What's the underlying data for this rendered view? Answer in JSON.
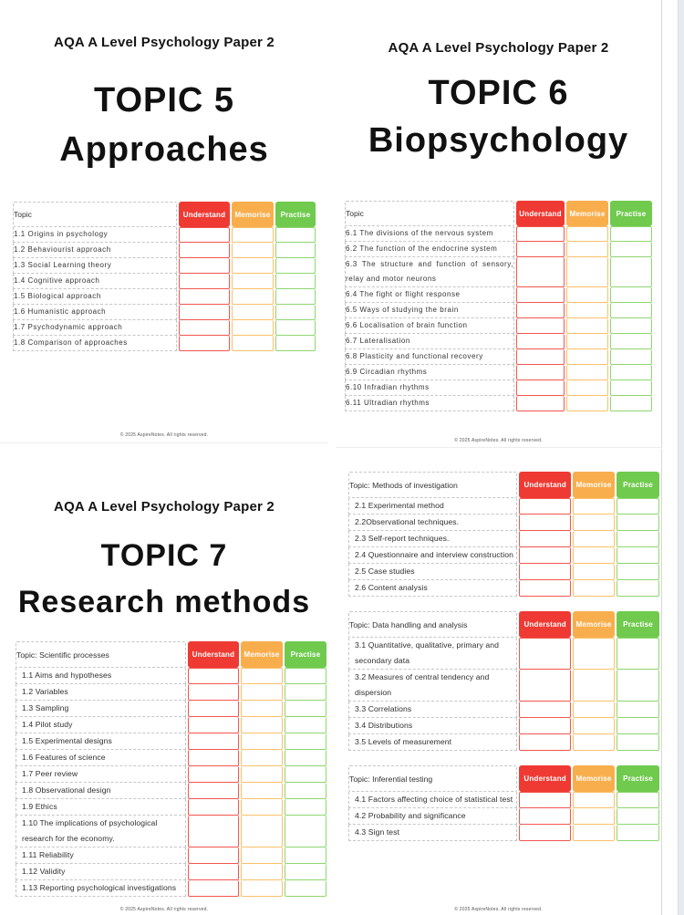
{
  "document_title": "AQA A Level Psychology Paper 2",
  "footer_text": "© 2025 AspireNotes. All rights reserved.",
  "columns": [
    "Understand",
    "Memorise",
    "Practise"
  ],
  "colors": {
    "understand_header": "#ee3a33",
    "understand_border": "#f2564e",
    "memorise_header": "#f9ae4d",
    "memorise_border": "#fbc068",
    "practise_header": "#70ca4e",
    "practise_border": "#8ed66f"
  },
  "pages": [
    {
      "name": "topic-5-approaches",
      "header": "AQA A Level Psychology Paper 2",
      "title1": "TOPIC 5",
      "title2": "Approaches",
      "footer": "© 2025 AspireNotes. All rights reserved.",
      "tables": [
        {
          "topic_label": "Topic",
          "rows": [
            "1.1 Origins in psychology",
            "1.2 Behaviourist approach",
            "1.3 Social Learning theory",
            "1.4 Cognitive approach",
            "1.5 Biological approach",
            "1.6 Humanistic approach",
            "1.7 Psychodynamic approach",
            "1.8 Comparison of approaches"
          ]
        }
      ]
    },
    {
      "name": "topic-6-biopsychology",
      "header": "AQA A Level Psychology Paper 2",
      "title1": "TOPIC 6",
      "title2": "Biopsychology",
      "footer": "© 2025 AspireNotes. All rights reserved.",
      "tables": [
        {
          "topic_label": "Topic",
          "rows": [
            "6.1 The divisions of the nervous system",
            "6.2 The function of the endocrine system",
            "6.3 The structure and function of sensory, relay and motor neurons",
            "6.4 The fight or flight response",
            "6.5 Ways of studying the brain",
            "6.6 Localisation of brain function",
            "6.7 Lateralisation",
            "6.8 Plasticity and functional recovery",
            "6.9 Circadian rhythms",
            "6.10 Infradian rhythms",
            "6.11 Ultradian rhythms"
          ]
        }
      ]
    },
    {
      "name": "topic-7-research-methods",
      "header": "AQA A Level Psychology Paper 2",
      "title1": "TOPIC 7",
      "title2": "Research methods",
      "footer": "© 2025 AspireNotes. All rights reserved.",
      "tables": [
        {
          "topic_label": "Topic: Scientific processes",
          "rows": [
            "1.1 Aims and hypotheses",
            "1.2 Variables",
            "1.3 Sampling",
            "1.4 Pilot study",
            "1.5 Experimental designs",
            "1.6 Features of science",
            "1.7 Peer review",
            "1.8 Observational design",
            "1.9 Ethics",
            "1.10 The implications of psychological research for the economy.",
            "1.11 Reliability",
            "1.12 Validity",
            "1.13 Reporting psychological investigations"
          ]
        }
      ]
    },
    {
      "name": "topic-7-continued",
      "footer": "© 2025 AspireNotes. All rights reserved.",
      "tables": [
        {
          "topic_label": "Topic: Methods of investigation",
          "rows": [
            "2.1 Experimental method",
            "2.2Observational techniques.",
            "2.3 Self-report techniques.",
            "2.4 Questionnaire and interview construction",
            "2.5 Case studies",
            "2.6 Content analysis"
          ]
        },
        {
          "topic_label": "Topic: Data handling and analysis",
          "rows": [
            "3.1 Quantitative, qualitative, primary and secondary data",
            "3.2 Measures of central tendency and dispersion",
            "3.3 Correlations",
            "3.4 Distributions",
            "3.5 Levels of measurement"
          ]
        },
        {
          "topic_label": "Topic: Inferential testing",
          "rows": [
            "4.1 Factors affecting choice of statistical test",
            "4.2 Probability and significance",
            "4.3 Sign test"
          ]
        }
      ]
    }
  ]
}
